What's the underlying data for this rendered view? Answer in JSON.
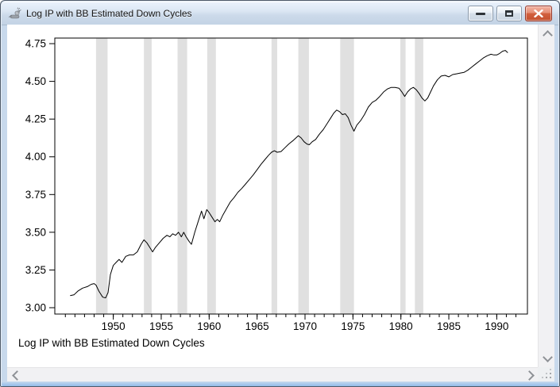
{
  "window": {
    "title": "Log IP with BB Estimated Down Cycles"
  },
  "caption": "Log IP with BB Estimated Down Cycles",
  "icons": {
    "app": "rat-figure-icon",
    "minimize": "horizontal-bar",
    "maximize": "square-outline",
    "close": "x-cross",
    "scroll_up": "chevron-up",
    "scroll_down": "chevron-down",
    "scroll_left": "chevron-left",
    "scroll_right": "chevron-right",
    "resize_grip": "diagonal-dots"
  },
  "colors": {
    "close_button": "#c4512f",
    "titlebar": "#d4e1f0",
    "band": "#e0e0e0",
    "line": "#000000"
  },
  "chart_data": {
    "type": "line",
    "title": "Log IP with BB Estimated Down Cycles",
    "xlabel": "",
    "ylabel": "",
    "grid": false,
    "legend": "none",
    "x_axis": {
      "range": [
        1943.9,
        1993.2
      ],
      "major_ticks": [
        1950,
        1955,
        1960,
        1965,
        1970,
        1975,
        1980,
        1985,
        1990
      ],
      "major_tick_labels": [
        "1950",
        "1955",
        "1960",
        "1965",
        "1970",
        "1975",
        "1980",
        "1985",
        "1990"
      ],
      "minor_tick_start": 1945,
      "minor_tick_end": 1992,
      "minor_tick_interval": 1
    },
    "y_axis": {
      "range": [
        2.958,
        4.787
      ],
      "ticks": [
        3.0,
        3.25,
        3.5,
        3.75,
        4.0,
        4.25,
        4.5,
        4.75
      ],
      "tick_labels": [
        "3.00",
        "3.25",
        "3.50",
        "3.75",
        "4.00",
        "4.25",
        "4.50",
        "4.75"
      ]
    },
    "down_cycle_bands": {
      "color": "#e0e0e0",
      "intervals": [
        [
          1948.2,
          1949.4
        ],
        [
          1953.2,
          1954.0
        ],
        [
          1956.7,
          1957.7
        ],
        [
          1959.8,
          1960.7
        ],
        [
          1966.5,
          1967.1
        ],
        [
          1969.3,
          1970.4
        ],
        [
          1973.67,
          1975.1
        ],
        [
          1979.94,
          1980.49
        ],
        [
          1981.46,
          1982.34
        ]
      ]
    },
    "series": [
      {
        "name": "Log IP",
        "color": "#000000",
        "points": [
          [
            1945.5,
            3.08
          ],
          [
            1945.9,
            3.085
          ],
          [
            1946.3,
            3.11
          ],
          [
            1946.8,
            3.13
          ],
          [
            1947.3,
            3.14
          ],
          [
            1947.7,
            3.155
          ],
          [
            1948.0,
            3.16
          ],
          [
            1948.2,
            3.15
          ],
          [
            1948.5,
            3.11
          ],
          [
            1948.9,
            3.07
          ],
          [
            1949.2,
            3.065
          ],
          [
            1949.45,
            3.1
          ],
          [
            1949.7,
            3.22
          ],
          [
            1950.0,
            3.28
          ],
          [
            1950.3,
            3.3
          ],
          [
            1950.6,
            3.32
          ],
          [
            1950.9,
            3.3
          ],
          [
            1951.3,
            3.34
          ],
          [
            1951.7,
            3.35
          ],
          [
            1952.1,
            3.35
          ],
          [
            1952.5,
            3.37
          ],
          [
            1952.9,
            3.42
          ],
          [
            1953.2,
            3.45
          ],
          [
            1953.5,
            3.43
          ],
          [
            1953.8,
            3.4
          ],
          [
            1954.1,
            3.37
          ],
          [
            1954.4,
            3.4
          ],
          [
            1954.8,
            3.43
          ],
          [
            1955.2,
            3.46
          ],
          [
            1955.6,
            3.48
          ],
          [
            1955.9,
            3.47
          ],
          [
            1956.2,
            3.49
          ],
          [
            1956.5,
            3.48
          ],
          [
            1956.8,
            3.5
          ],
          [
            1957.1,
            3.47
          ],
          [
            1957.35,
            3.5
          ],
          [
            1957.6,
            3.47
          ],
          [
            1957.9,
            3.44
          ],
          [
            1958.15,
            3.42
          ],
          [
            1958.5,
            3.5
          ],
          [
            1958.9,
            3.58
          ],
          [
            1959.2,
            3.64
          ],
          [
            1959.45,
            3.59
          ],
          [
            1959.75,
            3.65
          ],
          [
            1960.0,
            3.63
          ],
          [
            1960.3,
            3.6
          ],
          [
            1960.6,
            3.57
          ],
          [
            1960.85,
            3.585
          ],
          [
            1961.1,
            3.57
          ],
          [
            1961.4,
            3.61
          ],
          [
            1961.8,
            3.655
          ],
          [
            1962.2,
            3.7
          ],
          [
            1962.6,
            3.73
          ],
          [
            1963.0,
            3.765
          ],
          [
            1963.4,
            3.79
          ],
          [
            1963.8,
            3.82
          ],
          [
            1964.2,
            3.85
          ],
          [
            1964.6,
            3.88
          ],
          [
            1965.0,
            3.915
          ],
          [
            1965.4,
            3.95
          ],
          [
            1965.8,
            3.98
          ],
          [
            1966.2,
            4.01
          ],
          [
            1966.5,
            4.03
          ],
          [
            1966.8,
            4.04
          ],
          [
            1967.1,
            4.03
          ],
          [
            1967.5,
            4.035
          ],
          [
            1967.9,
            4.06
          ],
          [
            1968.3,
            4.085
          ],
          [
            1968.8,
            4.11
          ],
          [
            1969.3,
            4.14
          ],
          [
            1969.6,
            4.125
          ],
          [
            1969.9,
            4.1
          ],
          [
            1970.2,
            4.085
          ],
          [
            1970.45,
            4.08
          ],
          [
            1970.75,
            4.1
          ],
          [
            1971.1,
            4.115
          ],
          [
            1971.5,
            4.15
          ],
          [
            1971.9,
            4.18
          ],
          [
            1972.3,
            4.22
          ],
          [
            1972.7,
            4.26
          ],
          [
            1973.0,
            4.29
          ],
          [
            1973.3,
            4.31
          ],
          [
            1973.6,
            4.3
          ],
          [
            1973.9,
            4.28
          ],
          [
            1974.2,
            4.285
          ],
          [
            1974.5,
            4.26
          ],
          [
            1974.8,
            4.21
          ],
          [
            1975.1,
            4.17
          ],
          [
            1975.4,
            4.21
          ],
          [
            1975.8,
            4.24
          ],
          [
            1976.2,
            4.28
          ],
          [
            1976.6,
            4.33
          ],
          [
            1977.0,
            4.36
          ],
          [
            1977.4,
            4.375
          ],
          [
            1977.8,
            4.4
          ],
          [
            1978.2,
            4.43
          ],
          [
            1978.6,
            4.45
          ],
          [
            1979.0,
            4.46
          ],
          [
            1979.4,
            4.46
          ],
          [
            1979.8,
            4.455
          ],
          [
            1980.1,
            4.43
          ],
          [
            1980.4,
            4.4
          ],
          [
            1980.7,
            4.43
          ],
          [
            1981.0,
            4.45
          ],
          [
            1981.3,
            4.46
          ],
          [
            1981.6,
            4.445
          ],
          [
            1981.9,
            4.42
          ],
          [
            1982.2,
            4.39
          ],
          [
            1982.5,
            4.37
          ],
          [
            1982.8,
            4.39
          ],
          [
            1983.1,
            4.43
          ],
          [
            1983.4,
            4.47
          ],
          [
            1983.8,
            4.51
          ],
          [
            1984.2,
            4.535
          ],
          [
            1984.6,
            4.54
          ],
          [
            1985.0,
            4.53
          ],
          [
            1985.4,
            4.545
          ],
          [
            1985.8,
            4.55
          ],
          [
            1986.2,
            4.555
          ],
          [
            1986.6,
            4.56
          ],
          [
            1987.0,
            4.575
          ],
          [
            1987.4,
            4.595
          ],
          [
            1987.8,
            4.615
          ],
          [
            1988.2,
            4.635
          ],
          [
            1988.6,
            4.655
          ],
          [
            1989.0,
            4.67
          ],
          [
            1989.4,
            4.68
          ],
          [
            1989.7,
            4.675
          ],
          [
            1990.0,
            4.675
          ],
          [
            1990.3,
            4.685
          ],
          [
            1990.6,
            4.7
          ],
          [
            1990.9,
            4.705
          ],
          [
            1991.15,
            4.69
          ]
        ]
      }
    ]
  }
}
